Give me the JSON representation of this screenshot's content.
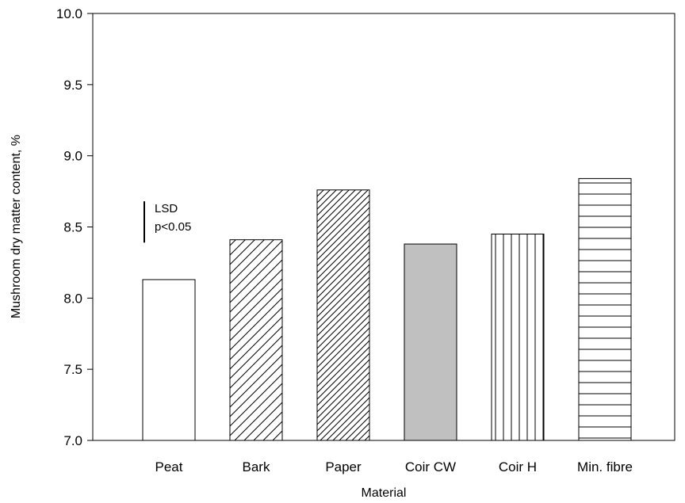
{
  "chart_data": {
    "type": "bar",
    "xlabel": "Material",
    "ylabel": "Mushroom dry matter content, %",
    "ylim": [
      7.0,
      10.0
    ],
    "yticks": [
      "7.0",
      "7.5",
      "8.0",
      "8.5",
      "9.0",
      "9.5",
      "10.0"
    ],
    "categories": [
      "Peat",
      "Bark",
      "Paper",
      "Coir CW",
      "Coir H",
      "Min. fibre"
    ],
    "values": [
      8.13,
      8.41,
      8.76,
      8.38,
      8.45,
      8.84
    ],
    "patterns": [
      "none",
      "diagonal-wide",
      "diagonal-dense",
      "solid-grey",
      "vertical",
      "horizontal"
    ],
    "fill_color_grey": "#c0c0c0",
    "grid": false,
    "annotation": {
      "lines": [
        "LSD",
        "p<0.05"
      ],
      "lsd_value": 0.29,
      "bar_top": 8.68
    }
  }
}
